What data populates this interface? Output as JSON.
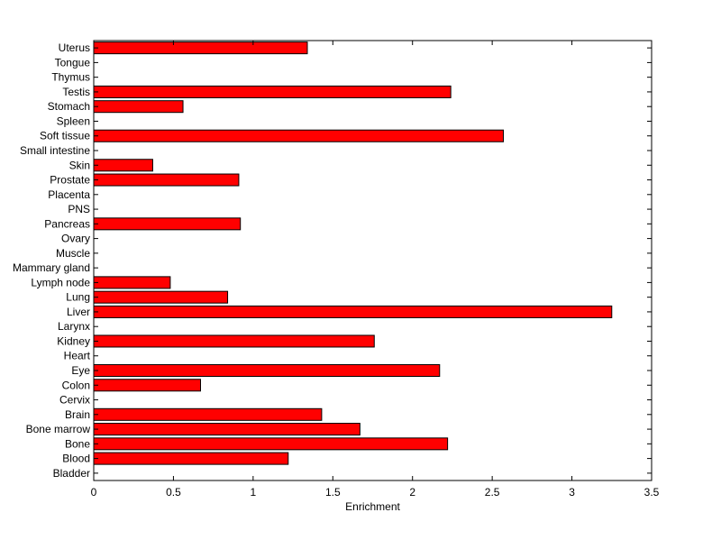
{
  "chart_data": {
    "type": "bar",
    "orientation": "horizontal",
    "xlabel": "Enrichment",
    "ylabel": "",
    "xlim": [
      0,
      3.5
    ],
    "xticks": [
      "0",
      "0.5",
      "1",
      "1.5",
      "2",
      "2.5",
      "3",
      "3.5"
    ],
    "xtick_values": [
      0,
      0.5,
      1,
      1.5,
      2,
      2.5,
      3,
      3.5
    ],
    "grid": false,
    "bar_color": "#ff0000",
    "bar_edge_color": "#000000",
    "categories": [
      "Bladder",
      "Blood",
      "Bone",
      "Bone marrow",
      "Brain",
      "Cervix",
      "Colon",
      "Eye",
      "Heart",
      "Kidney",
      "Larynx",
      "Liver",
      "Lung",
      "Lymph node",
      "Mammary gland",
      "Muscle",
      "Ovary",
      "Pancreas",
      "PNS",
      "Placenta",
      "Prostate",
      "Skin",
      "Small intestine",
      "Soft tissue",
      "Spleen",
      "Stomach",
      "Testis",
      "Thymus",
      "Tongue",
      "Uterus"
    ],
    "values": [
      0,
      1.22,
      2.22,
      1.67,
      1.43,
      0,
      0.67,
      2.17,
      0,
      1.76,
      0,
      3.25,
      0.84,
      0.48,
      0,
      0,
      0,
      0.92,
      0,
      0,
      0.91,
      0.37,
      0,
      2.57,
      0,
      0.56,
      2.24,
      0,
      0,
      1.34
    ]
  }
}
